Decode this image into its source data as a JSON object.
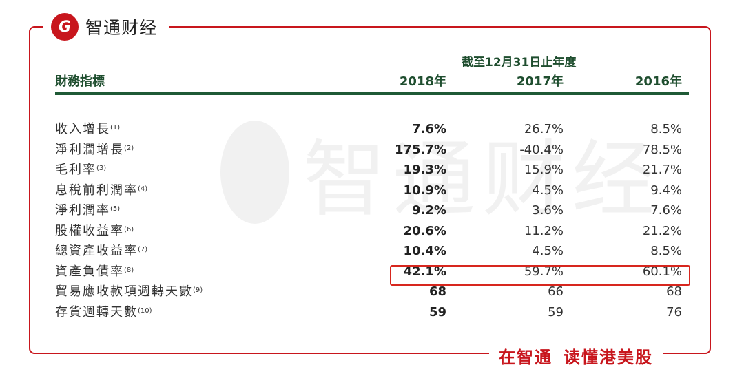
{
  "brand": {
    "logo_letter": "G",
    "name": "智通财经"
  },
  "watermark": {
    "text": "智通财经"
  },
  "table": {
    "period_header": "截至12月31日止年度",
    "indicator_header": "財務指標",
    "years": [
      "2018年",
      "2017年",
      "2016年"
    ],
    "rows": [
      {
        "label": "收入增長",
        "note": "(1)",
        "values": [
          "7.6%",
          "26.7%",
          "8.5%"
        ]
      },
      {
        "label": "淨利潤增長",
        "note": "(2)",
        "values": [
          "175.7%",
          "-40.4%",
          "78.5%"
        ]
      },
      {
        "label": "毛利率",
        "note": "(3)",
        "values": [
          "19.3%",
          "15.9%",
          "21.7%"
        ]
      },
      {
        "label": "息稅前利潤率",
        "note": "(4)",
        "values": [
          "10.9%",
          "4.5%",
          "9.4%"
        ]
      },
      {
        "label": "淨利潤率",
        "note": "(5)",
        "values": [
          "9.2%",
          "3.6%",
          "7.6%"
        ]
      },
      {
        "label": "股權收益率",
        "note": "(6)",
        "values": [
          "20.6%",
          "11.2%",
          "21.2%"
        ]
      },
      {
        "label": "總資產收益率",
        "note": "(7)",
        "values": [
          "10.4%",
          "4.5%",
          "8.5%"
        ]
      },
      {
        "label": "資產負債率",
        "note": "(8)",
        "values": [
          "42.1%",
          "59.7%",
          "60.1%"
        ]
      },
      {
        "label": "貿易應收款項週轉天數",
        "note": "(9)",
        "values": [
          "68",
          "66",
          "68"
        ]
      },
      {
        "label": "存貨週轉天數",
        "note": "(10)",
        "values": [
          "59",
          "59",
          "76"
        ]
      }
    ]
  },
  "footer": {
    "slogan_part1": "在智通",
    "slogan_part2": "读懂港美股"
  },
  "colors": {
    "brand_red": "#c8161d",
    "header_green": "#1f4e2f",
    "highlight_red": "#d7261e"
  }
}
